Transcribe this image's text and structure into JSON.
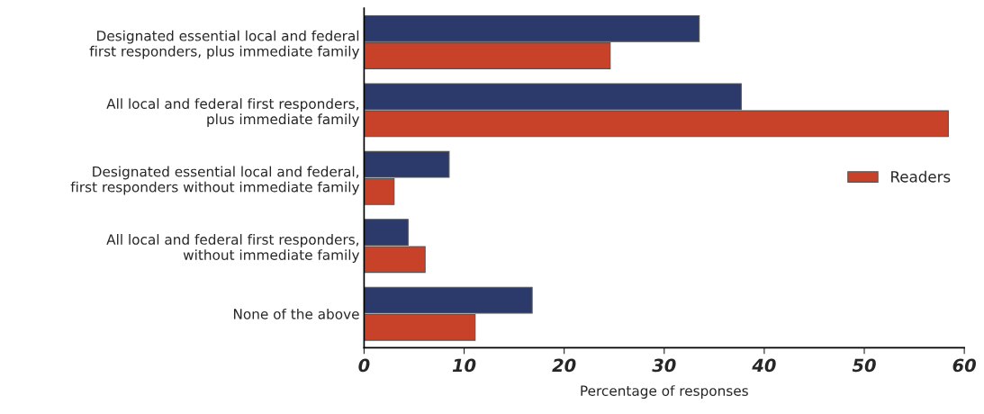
{
  "chart_data": {
    "type": "bar",
    "orientation": "horizontal",
    "categories": [
      "Designated essential local and federal\nfirst responders, plus immediate family",
      "All local and federal first responders,\nplus immediate family",
      "Designated essential local and federal,\nfirst responders without immediate family",
      "All local and federal first responders,\nwithout immediate family",
      "None of the above"
    ],
    "series": [
      {
        "color": "#2b3a6b",
        "values": [
          33.5,
          37.7,
          8.5,
          4.4,
          16.8
        ]
      },
      {
        "name": "Readers",
        "color": "#c8422a",
        "values": [
          24.6,
          58.4,
          3.0,
          6.1,
          11.1
        ]
      }
    ],
    "xlabel": "Percentage of responses",
    "xlim": [
      0,
      60
    ],
    "xticks": [
      0,
      10,
      20,
      30,
      40,
      50,
      60
    ],
    "grid": false,
    "legend": "center right"
  }
}
